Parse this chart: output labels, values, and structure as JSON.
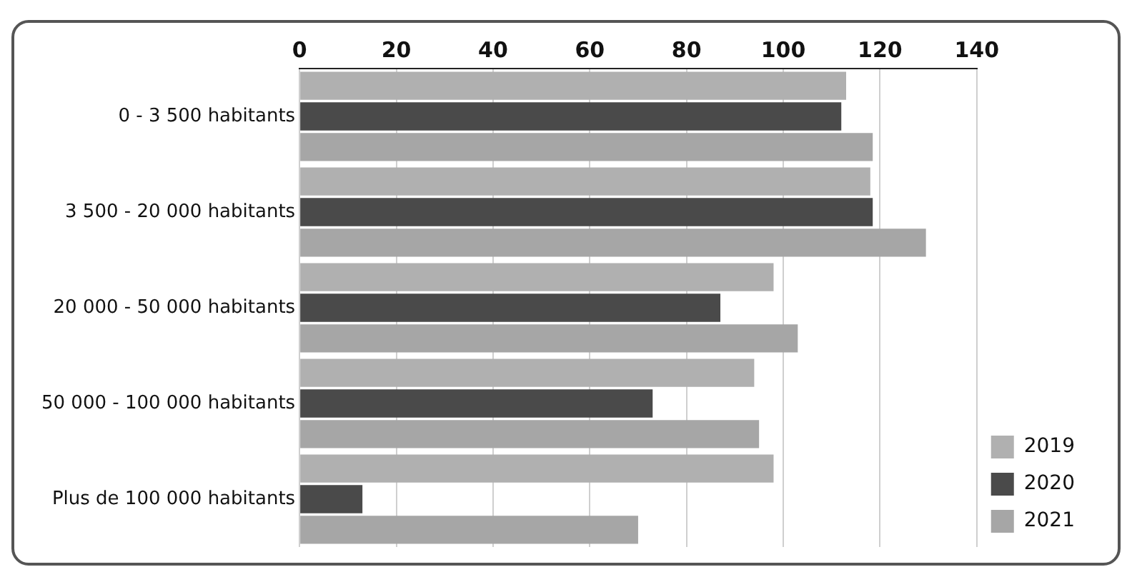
{
  "chart_data": {
    "type": "bar",
    "orientation": "horizontal",
    "categories": [
      "0 - 3 500 habitants",
      "3 500 - 20 000 habitants",
      "20 000 - 50 000 habitants",
      "50 000 - 100 000 habitants",
      "Plus de 100 000 habitants"
    ],
    "series": [
      {
        "name": "2019",
        "color": "#b0b0b0",
        "values": [
          113,
          118,
          98,
          94,
          98
        ]
      },
      {
        "name": "2020",
        "color": "#4a4a4a",
        "values": [
          112,
          118.5,
          87,
          73,
          13
        ]
      },
      {
        "name": "2021",
        "color": "#a6a6a6",
        "values": [
          118.5,
          129.5,
          103,
          95,
          70
        ]
      }
    ],
    "xlim": [
      0,
      140
    ],
    "xticks": [
      0,
      20,
      40,
      60,
      80,
      100,
      120,
      140
    ],
    "grid": "x",
    "legend": "bottom right"
  }
}
